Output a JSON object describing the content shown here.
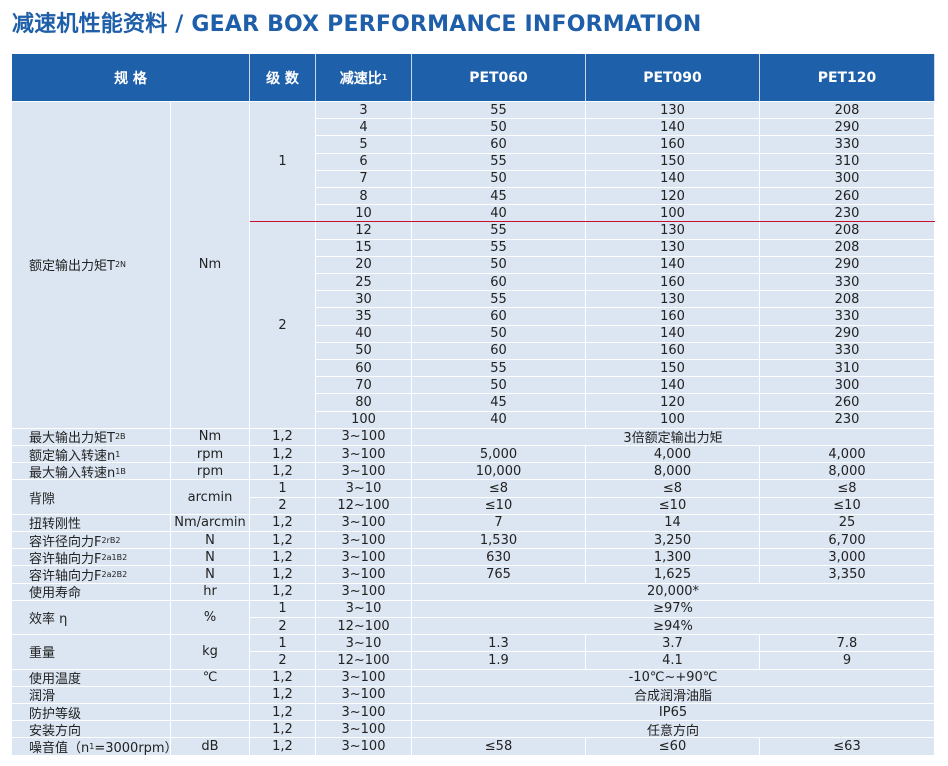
{
  "title": "减速机性能资料 / GEAR BOX PERFORMANCE INFORMATION",
  "header": {
    "spec": "规 格",
    "stage": "级 数",
    "ratio": "减速比",
    "ratio_note": "1",
    "models": [
      "PET060",
      "PET090",
      "PET120"
    ]
  },
  "torque": {
    "label": [
      {
        "text": "额定输出力矩T"
      },
      {
        "sub": "2N"
      }
    ],
    "unit": "Nm",
    "groups": [
      {
        "stage": "1",
        "rows": [
          [
            "3",
            "55",
            "130",
            "208"
          ],
          [
            "4",
            "50",
            "140",
            "290"
          ],
          [
            "5",
            "60",
            "160",
            "330"
          ],
          [
            "6",
            "55",
            "150",
            "310"
          ],
          [
            "7",
            "50",
            "140",
            "300"
          ],
          [
            "8",
            "45",
            "120",
            "260"
          ],
          [
            "10",
            "40",
            "100",
            "230"
          ]
        ]
      },
      {
        "stage": "2",
        "rows": [
          [
            "12",
            "55",
            "130",
            "208"
          ],
          [
            "15",
            "55",
            "130",
            "208"
          ],
          [
            "20",
            "50",
            "140",
            "290"
          ],
          [
            "25",
            "60",
            "160",
            "330"
          ],
          [
            "30",
            "55",
            "130",
            "208"
          ],
          [
            "35",
            "60",
            "160",
            "330"
          ],
          [
            "40",
            "50",
            "140",
            "290"
          ],
          [
            "50",
            "60",
            "160",
            "330"
          ],
          [
            "60",
            "55",
            "150",
            "310"
          ],
          [
            "70",
            "50",
            "140",
            "300"
          ],
          [
            "80",
            "45",
            "120",
            "260"
          ],
          [
            "100",
            "40",
            "100",
            "230"
          ]
        ]
      }
    ]
  },
  "specs": [
    {
      "label": [
        {
          "text": "最大输出力矩T"
        },
        {
          "sub": "2B"
        }
      ],
      "unit": "Nm",
      "rows": [
        {
          "stage": "1,2",
          "ratio": "3~100",
          "all": "3倍额定输出力矩"
        }
      ]
    },
    {
      "label": [
        {
          "text": "额定输入转速n"
        },
        {
          "sub": "1"
        }
      ],
      "unit": "rpm",
      "rows": [
        {
          "stage": "1,2",
          "ratio": "3~100",
          "values": [
            "5,000",
            "4,000",
            "4,000"
          ]
        }
      ]
    },
    {
      "label": [
        {
          "text": "最大输入转速n"
        },
        {
          "sub": "1B"
        }
      ],
      "unit": "rpm",
      "rows": [
        {
          "stage": "1,2",
          "ratio": "3~100",
          "values": [
            "10,000",
            "8,000",
            "8,000"
          ]
        }
      ]
    },
    {
      "label": [
        {
          "text": "背隙"
        }
      ],
      "unit": "arcmin",
      "rows": [
        {
          "stage": "1",
          "ratio": "3~10",
          "values": [
            "≤8",
            "≤8",
            "≤8"
          ]
        },
        {
          "stage": "2",
          "ratio": "12~100",
          "values": [
            "≤10",
            "≤10",
            "≤10"
          ]
        }
      ]
    },
    {
      "label": [
        {
          "text": "扭转刚性"
        }
      ],
      "unit": "Nm/arcmin",
      "rows": [
        {
          "stage": "1,2",
          "ratio": "3~100",
          "values": [
            "7",
            "14",
            "25"
          ]
        }
      ]
    },
    {
      "label": [
        {
          "text": "容许径向力F"
        },
        {
          "sub": "2rB"
        },
        {
          "sup": "2"
        }
      ],
      "unit": "N",
      "rows": [
        {
          "stage": "1,2",
          "ratio": "3~100",
          "values": [
            "1,530",
            "3,250",
            "6,700"
          ]
        }
      ]
    },
    {
      "label": [
        {
          "text": "容许轴向力F"
        },
        {
          "sub": "2a1B"
        },
        {
          "sup": "2"
        }
      ],
      "unit": "N",
      "rows": [
        {
          "stage": "1,2",
          "ratio": "3~100",
          "values": [
            "630",
            "1,300",
            "3,000"
          ]
        }
      ]
    },
    {
      "label": [
        {
          "text": "容许轴向力F"
        },
        {
          "sub": "2a2B"
        },
        {
          "sup": "2"
        }
      ],
      "unit": "N",
      "rows": [
        {
          "stage": "1,2",
          "ratio": "3~100",
          "values": [
            "765",
            "1,625",
            "3,350"
          ]
        }
      ]
    },
    {
      "label": [
        {
          "text": "使用寿命"
        }
      ],
      "unit": "hr",
      "rows": [
        {
          "stage": "1,2",
          "ratio": "3~100",
          "all": "20,000*"
        }
      ]
    },
    {
      "label": [
        {
          "text": "效率 η"
        }
      ],
      "unit": "%",
      "rows": [
        {
          "stage": "1",
          "ratio": "3~10",
          "all": "≥97%"
        },
        {
          "stage": "2",
          "ratio": "12~100",
          "all": "≥94%"
        }
      ]
    },
    {
      "label": [
        {
          "text": "重量"
        }
      ],
      "unit": "kg",
      "rows": [
        {
          "stage": "1",
          "ratio": "3~10",
          "values": [
            "1.3",
            "3.7",
            "7.8"
          ]
        },
        {
          "stage": "2",
          "ratio": "12~100",
          "values": [
            "1.9",
            "4.1",
            "9"
          ]
        }
      ]
    },
    {
      "label": [
        {
          "text": "使用温度"
        }
      ],
      "unit": "℃",
      "rows": [
        {
          "stage": "1,2",
          "ratio": "3~100",
          "all": "-10℃~+90℃"
        }
      ]
    },
    {
      "label": [
        {
          "text": "润滑"
        }
      ],
      "rows": [
        {
          "stage": "1,2",
          "ratio": "3~100",
          "all": "合成润滑油脂"
        }
      ]
    },
    {
      "label": [
        {
          "text": "防护等级"
        }
      ],
      "rows": [
        {
          "stage": "1,2",
          "ratio": "3~100",
          "all": "IP65"
        }
      ]
    },
    {
      "label": [
        {
          "text": "安装方向"
        }
      ],
      "rows": [
        {
          "stage": "1,2",
          "ratio": "3~100",
          "all": "任意方向"
        }
      ]
    },
    {
      "label": [
        {
          "text": "噪音值（n"
        },
        {
          "sub": "1"
        },
        {
          "text": "=3000rpm）"
        }
      ],
      "unit": "dB",
      "rows": [
        {
          "stage": "1,2",
          "ratio": "3~100",
          "values": [
            "≤58",
            "≤60",
            "≤63"
          ]
        }
      ]
    }
  ]
}
